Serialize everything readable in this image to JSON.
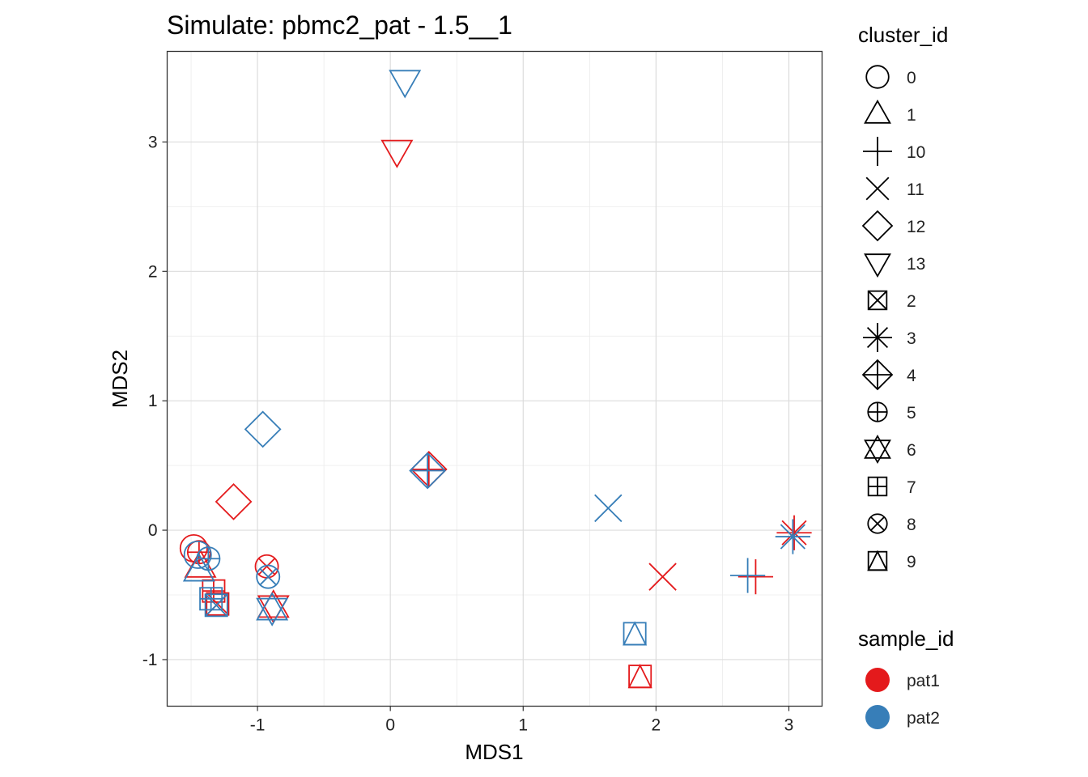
{
  "chart_data": {
    "type": "scatter",
    "title": "Simulate: pbmc2_pat - 1.5__1",
    "xlabel": "MDS1",
    "ylabel": "MDS2",
    "xlim": [
      -1.68,
      3.25
    ],
    "ylim": [
      -1.36,
      3.7
    ],
    "x_ticks": [
      -1,
      0,
      1,
      2,
      3
    ],
    "y_ticks": [
      -1,
      0,
      1,
      2,
      3
    ],
    "grid": true,
    "legend_position": "right",
    "shape_legend": {
      "title": "cluster_id",
      "items": [
        {
          "label": "0",
          "shape": "circle"
        },
        {
          "label": "1",
          "shape": "triangle"
        },
        {
          "label": "10",
          "shape": "plus"
        },
        {
          "label": "11",
          "shape": "cross"
        },
        {
          "label": "12",
          "shape": "diamond"
        },
        {
          "label": "13",
          "shape": "triangle-down"
        },
        {
          "label": "2",
          "shape": "square-cross"
        },
        {
          "label": "3",
          "shape": "asterisk"
        },
        {
          "label": "4",
          "shape": "diamond-plus"
        },
        {
          "label": "5",
          "shape": "circle-plus"
        },
        {
          "label": "6",
          "shape": "star-of-david"
        },
        {
          "label": "7",
          "shape": "square-plus"
        },
        {
          "label": "8",
          "shape": "circle-cross"
        },
        {
          "label": "9",
          "shape": "square-triangle"
        }
      ]
    },
    "color_legend": {
      "title": "sample_id",
      "items": [
        {
          "label": "pat1",
          "color": "#E41A1C"
        },
        {
          "label": "pat2",
          "color": "#377EB8"
        }
      ]
    },
    "series": [
      {
        "name": "pat1",
        "color": "#E41A1C",
        "points": [
          {
            "cluster_id": "0",
            "x": -1.48,
            "y": -0.14
          },
          {
            "cluster_id": "1",
            "x": -1.43,
            "y": -0.28
          },
          {
            "cluster_id": "10",
            "x": 2.75,
            "y": -0.36
          },
          {
            "cluster_id": "11",
            "x": 2.05,
            "y": -0.36
          },
          {
            "cluster_id": "12",
            "x": -1.18,
            "y": 0.22
          },
          {
            "cluster_id": "13",
            "x": 0.05,
            "y": 2.93
          },
          {
            "cluster_id": "2",
            "x": -1.3,
            "y": -0.57
          },
          {
            "cluster_id": "3",
            "x": 3.04,
            "y": -0.02
          },
          {
            "cluster_id": "4",
            "x": 0.29,
            "y": 0.47
          },
          {
            "cluster_id": "5",
            "x": -1.44,
            "y": -0.17
          },
          {
            "cluster_id": "6",
            "x": -0.88,
            "y": -0.59
          },
          {
            "cluster_id": "7",
            "x": -1.33,
            "y": -0.47
          },
          {
            "cluster_id": "8",
            "x": -0.93,
            "y": -0.28
          },
          {
            "cluster_id": "9",
            "x": 1.88,
            "y": -1.13
          }
        ]
      },
      {
        "name": "pat2",
        "color": "#377EB8",
        "points": [
          {
            "cluster_id": "0",
            "x": -1.45,
            "y": -0.19
          },
          {
            "cluster_id": "1",
            "x": -1.44,
            "y": -0.31
          },
          {
            "cluster_id": "10",
            "x": 2.69,
            "y": -0.35
          },
          {
            "cluster_id": "11",
            "x": 1.64,
            "y": 0.17
          },
          {
            "cluster_id": "12",
            "x": -0.96,
            "y": 0.78
          },
          {
            "cluster_id": "13",
            "x": 0.11,
            "y": 3.47
          },
          {
            "cluster_id": "2",
            "x": -1.31,
            "y": -0.58
          },
          {
            "cluster_id": "3",
            "x": 3.03,
            "y": -0.05
          },
          {
            "cluster_id": "4",
            "x": 0.28,
            "y": 0.46
          },
          {
            "cluster_id": "5",
            "x": -1.37,
            "y": -0.22
          },
          {
            "cluster_id": "6",
            "x": -0.89,
            "y": -0.61
          },
          {
            "cluster_id": "7",
            "x": -1.35,
            "y": -0.53
          },
          {
            "cluster_id": "8",
            "x": -0.92,
            "y": -0.36
          },
          {
            "cluster_id": "9",
            "x": 1.84,
            "y": -0.8
          }
        ]
      }
    ]
  }
}
